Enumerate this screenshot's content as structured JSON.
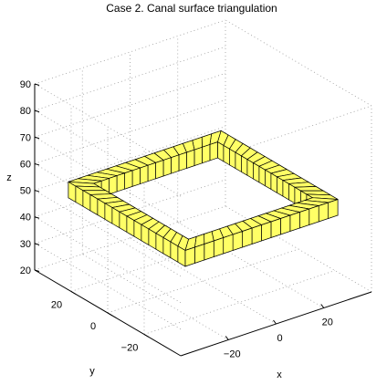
{
  "chart_data": {
    "type": "surface",
    "title": "Case 2. Canal surface triangulation",
    "xlabel": "x",
    "ylabel": "y",
    "zlabel": "z",
    "xlim": [
      -40,
      40
    ],
    "ylim": [
      -40,
      40
    ],
    "zlim": [
      20,
      90
    ],
    "xticks": [
      -20,
      0,
      20
    ],
    "yticks": [
      -20,
      0,
      20
    ],
    "zticks": [
      20,
      30,
      40,
      50,
      60,
      70,
      80,
      90
    ],
    "grid": true,
    "surface": {
      "shape": "square-frame",
      "inner_half_width": 26,
      "outer_half_width": 32,
      "z_range": [
        48,
        54
      ],
      "face_color": "#ffff66",
      "edge_color": "#000000"
    }
  }
}
